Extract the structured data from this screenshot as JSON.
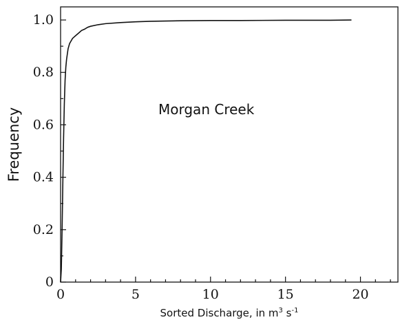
{
  "chart_data": {
    "type": "line",
    "ylabel": "Frequency",
    "xlabel": {
      "prefix": "Sorted Discharge, in m",
      "sup1": "3",
      "mid": " s",
      "sup2": "-1"
    },
    "annotation": "Morgan Creek",
    "xlim": [
      0,
      22.5
    ],
    "ylim": [
      0,
      1.05
    ],
    "x_ticks": [
      0,
      5,
      10,
      15,
      20
    ],
    "x_tick_labels": [
      "0",
      "5",
      "10",
      "15",
      "20"
    ],
    "y_ticks": [
      0,
      0.2,
      0.4,
      0.6,
      0.8,
      1.0
    ],
    "y_tick_labels": [
      "0",
      "0.2",
      "0.4",
      "0.6",
      "0.8",
      "1.0"
    ],
    "series": [
      {
        "x": [
          0.0,
          0.05,
          0.1,
          0.15,
          0.2,
          0.25,
          0.3,
          0.35,
          0.4,
          0.45,
          0.5,
          0.6,
          0.7,
          0.8,
          0.9,
          1.0,
          1.2,
          1.4,
          1.6,
          1.8,
          2.0,
          2.5,
          3.0,
          4.0,
          5.0,
          6.0,
          8.0,
          10.0,
          12.0,
          15.0,
          18.0,
          19.4
        ],
        "y": [
          0.0,
          0.05,
          0.2,
          0.38,
          0.55,
          0.68,
          0.77,
          0.82,
          0.85,
          0.87,
          0.89,
          0.91,
          0.92,
          0.93,
          0.935,
          0.94,
          0.95,
          0.96,
          0.965,
          0.972,
          0.976,
          0.982,
          0.986,
          0.99,
          0.993,
          0.995,
          0.997,
          0.998,
          0.998,
          0.999,
          0.999,
          1.0
        ]
      }
    ]
  }
}
